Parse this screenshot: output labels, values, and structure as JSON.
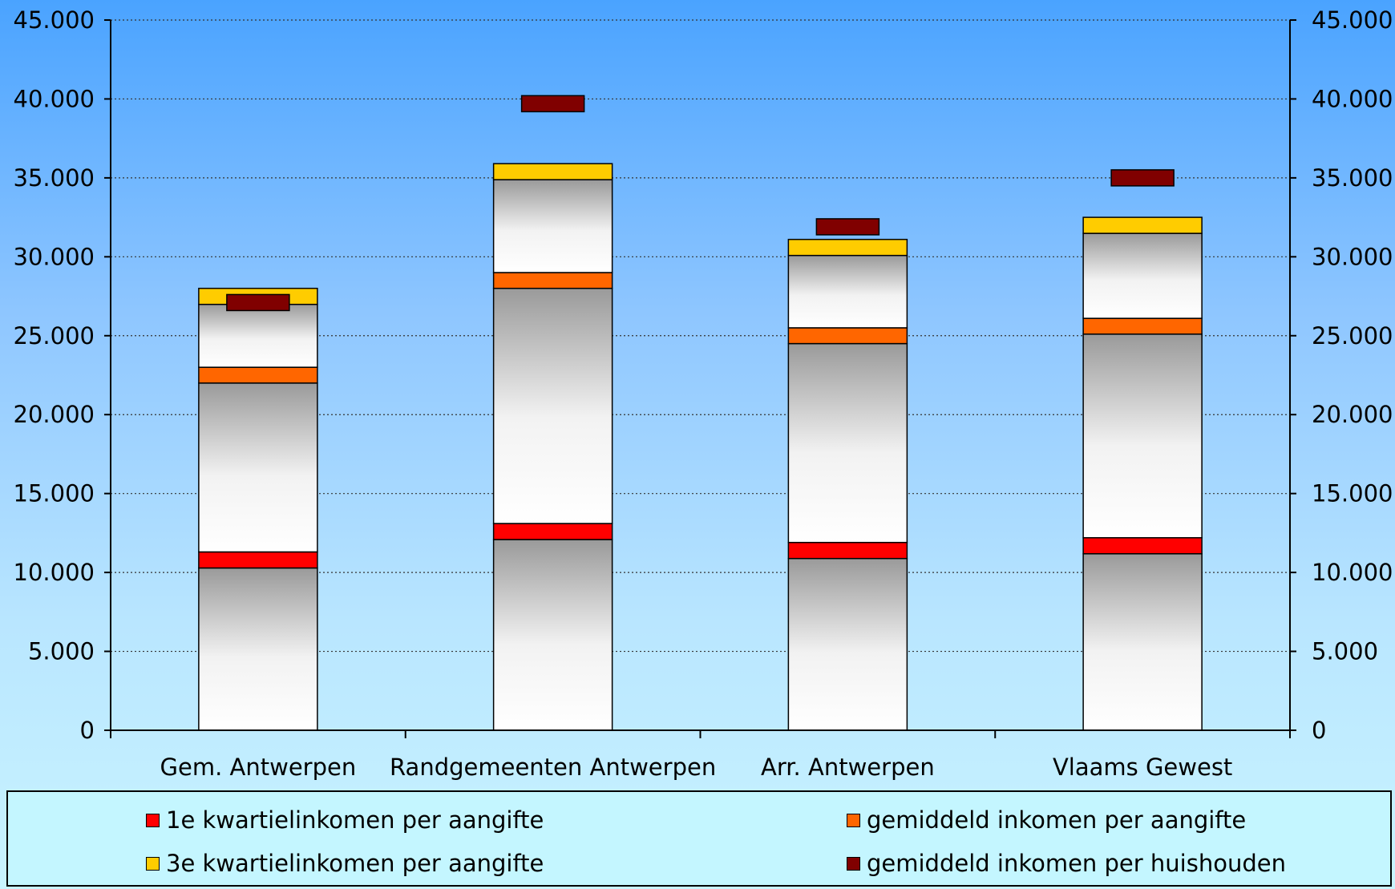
{
  "chart_data": {
    "type": "bar",
    "categories": [
      "Gem. Antwerpen",
      "Randgemeenten Antwerpen",
      "Arr. Antwerpen",
      "Vlaams Gewest"
    ],
    "ylim": [
      0,
      45000
    ],
    "yticks": [
      "0",
      "5.000",
      "10.000",
      "15.000",
      "20.000",
      "25.000",
      "30.000",
      "35.000",
      "40.000",
      "45.000"
    ],
    "ytick_values": [
      0,
      5000,
      10000,
      15000,
      20000,
      25000,
      30000,
      35000,
      40000,
      45000
    ],
    "grid": true,
    "legend_position": "bottom",
    "series": [
      {
        "name": "1e kwartielinkomen per aangifte",
        "color": "#ff0000",
        "values": [
          11300,
          13100,
          11900,
          12200
        ]
      },
      {
        "name": "gemiddeld inkomen per aangifte",
        "color": "#ff6600",
        "values": [
          23000,
          29000,
          25500,
          26100
        ]
      },
      {
        "name": "3e kwartielinkomen per aangifte",
        "color": "#ffcc00",
        "values": [
          28000,
          35900,
          31100,
          32500
        ]
      },
      {
        "name": "gemiddeld inkomen per huishouden",
        "color": "#800000",
        "values": [
          27100,
          39700,
          31900,
          35000
        ]
      }
    ],
    "median_values": [
      22000,
      28000,
      24500,
      25100
    ]
  }
}
